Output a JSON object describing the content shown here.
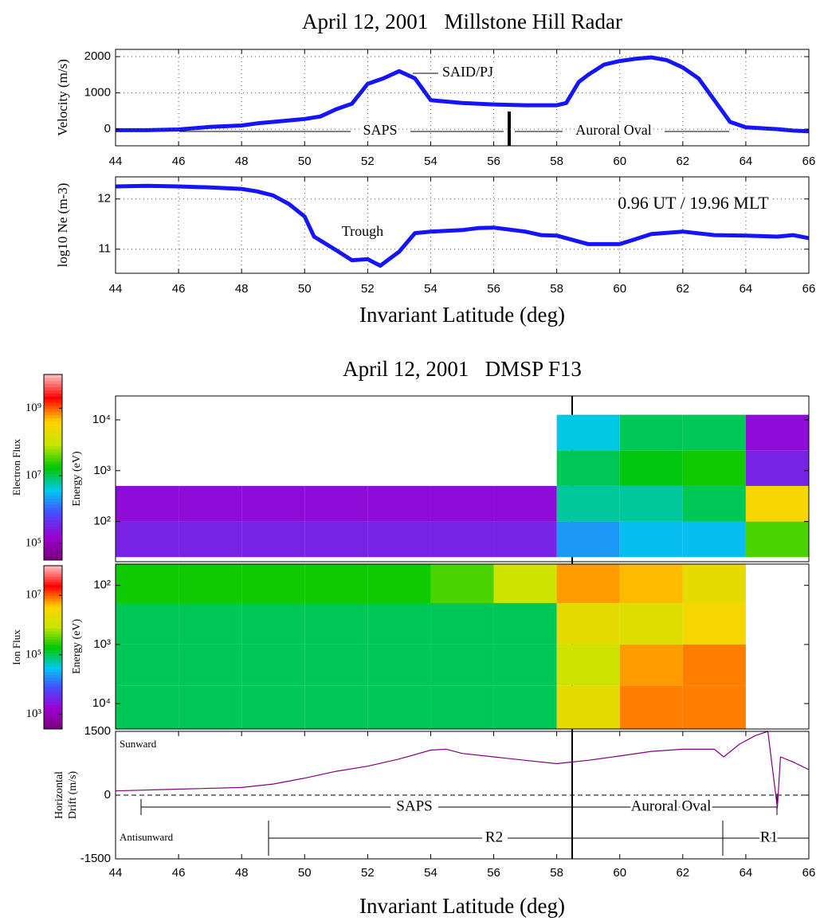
{
  "chart_data": [
    {
      "type": "line",
      "title": "April 12, 2001   Millstone Hill Radar",
      "y_label": "Velocity (m/s)",
      "x": [
        44,
        45,
        46,
        47,
        48,
        48.5,
        49,
        50,
        50.5,
        51,
        51.5,
        52,
        52.5,
        53,
        53.5,
        54,
        55,
        56,
        57,
        58,
        58.3,
        58.7,
        59,
        59.5,
        60,
        60.5,
        61,
        61.5,
        62,
        62.5,
        63,
        63.5,
        64,
        65,
        65.5,
        66
      ],
      "values": [
        -30,
        -30,
        -10,
        60,
        100,
        160,
        200,
        280,
        350,
        550,
        700,
        1250,
        1400,
        1600,
        1400,
        800,
        720,
        680,
        660,
        660,
        720,
        1300,
        1500,
        1780,
        1880,
        1940,
        1980,
        1900,
        1700,
        1400,
        800,
        200,
        50,
        0,
        -40,
        -60
      ],
      "color": "#1414ff",
      "xlim": [
        44,
        66
      ],
      "ylim": [
        -460,
        2200
      ],
      "xticks": [
        44,
        46,
        48,
        50,
        52,
        54,
        56,
        58,
        60,
        62,
        64,
        66
      ],
      "yticks": [
        0,
        1000,
        2000
      ],
      "grid": true,
      "annotations": [
        "SAID/PJ",
        "SAPS",
        "Auroral Oval"
      ]
    },
    {
      "type": "line",
      "y_label": "log10 Ne (m-3)",
      "x_label": "Invariant Latitude (deg)",
      "x": [
        44,
        45,
        46,
        47,
        48,
        48.5,
        49,
        49.5,
        50,
        50.3,
        51,
        51.5,
        52,
        52.4,
        53,
        53.5,
        54,
        55,
        55.5,
        56,
        57,
        57.5,
        58,
        59,
        60,
        60.5,
        61,
        62,
        63,
        64,
        65,
        65.5,
        66
      ],
      "values": [
        12.25,
        12.26,
        12.25,
        12.23,
        12.2,
        12.15,
        12.07,
        11.9,
        11.65,
        11.25,
        10.98,
        10.78,
        10.8,
        10.67,
        10.95,
        11.32,
        11.35,
        11.38,
        11.42,
        11.43,
        11.35,
        11.28,
        11.27,
        11.1,
        11.1,
        11.2,
        11.3,
        11.35,
        11.28,
        11.27,
        11.25,
        11.28,
        11.22
      ],
      "color": "#1414ff",
      "xlim": [
        44,
        66
      ],
      "ylim": [
        10.52,
        12.44
      ],
      "xticks": [
        44,
        46,
        48,
        50,
        52,
        54,
        56,
        58,
        60,
        62,
        64,
        66
      ],
      "yticks": [
        11,
        12
      ],
      "grid": true,
      "annotations": [
        "Trough",
        "0.96 UT / 19.96 MLT"
      ]
    },
    {
      "type": "heatmap",
      "title": "April 12, 2001   DMSP F13",
      "y_label": "Energy (eV)",
      "colorbar_label": "Electron Flux",
      "x_bins": [
        44,
        46,
        48,
        50,
        52,
        54,
        56,
        58,
        60,
        62,
        64,
        66
      ],
      "y_bins": [
        1.3,
        2.0,
        2.7,
        3.4,
        4.1
      ],
      "values": [
        [
          5.5,
          5.5,
          5.5,
          5.5,
          5.5,
          5.5,
          5.5,
          6.3,
          6.5,
          6.5,
          7.5
        ],
        [
          5.3,
          5.3,
          5.3,
          5.3,
          5.3,
          5.3,
          5.3,
          6.8,
          6.8,
          7.0,
          8.5
        ],
        [
          null,
          null,
          null,
          null,
          null,
          null,
          null,
          7.0,
          7.2,
          7.3,
          5.5
        ],
        [
          null,
          null,
          null,
          null,
          null,
          null,
          null,
          6.6,
          7.0,
          7.0,
          5.3
        ]
      ],
      "xlim": [
        44,
        66
      ],
      "ylim": [
        1.21,
        4.47
      ],
      "yticks": [
        {
          "value": 2,
          "label": "10²"
        },
        {
          "value": 3,
          "label": "10³"
        },
        {
          "value": 4,
          "label": "10⁴"
        }
      ],
      "clim": [
        4.5,
        10
      ],
      "cticks": [
        {
          "value": 5,
          "label": "10⁵"
        },
        {
          "value": 7,
          "label": "10⁷"
        },
        {
          "value": 9,
          "label": "10⁹"
        }
      ],
      "colormap": [
        "#78007a",
        "#9c00d0",
        "#4a4aff",
        "#00c8f0",
        "#00c800",
        "#c8e600",
        "#ffd200",
        "#ff0000",
        "#ffc0c0"
      ]
    },
    {
      "type": "heatmap",
      "y_label": "Energy (eV)",
      "colorbar_label": "Ion Flux",
      "x_bins": [
        44,
        46,
        48,
        50,
        52,
        54,
        56,
        58,
        60,
        62,
        64,
        66
      ],
      "y_bins": [
        1.64,
        2.3,
        3.0,
        3.7,
        4.43
      ],
      "values": [
        [
          5.3,
          5.3,
          5.3,
          5.3,
          5.3,
          5.5,
          6.0,
          6.8,
          6.7,
          6.3,
          null
        ],
        [
          5.0,
          5.0,
          5.0,
          5.0,
          5.0,
          5.0,
          5.0,
          6.3,
          6.2,
          6.5,
          null
        ],
        [
          5.0,
          5.0,
          5.0,
          5.0,
          5.0,
          5.0,
          5.0,
          6.0,
          6.8,
          6.9,
          null
        ],
        [
          5.0,
          5.0,
          5.0,
          5.0,
          5.0,
          5.0,
          5.0,
          6.3,
          6.9,
          6.9,
          null
        ]
      ],
      "xlim": [
        44,
        66
      ],
      "ylim": [
        4.43,
        1.64
      ],
      "yticks": [
        {
          "value": 2,
          "label": "10²"
        },
        {
          "value": 3,
          "label": "10³"
        },
        {
          "value": 4,
          "label": "10⁴"
        }
      ],
      "clim": [
        2.5,
        8
      ],
      "cticks": [
        {
          "value": 3,
          "label": "10³"
        },
        {
          "value": 5,
          "label": "10⁵"
        },
        {
          "value": 7,
          "label": "10⁷"
        }
      ],
      "colormap": [
        "#78007a",
        "#9c00d0",
        "#4a4aff",
        "#00c8f0",
        "#00c800",
        "#c8e600",
        "#ffd200",
        "#ff0000",
        "#ffc0c0"
      ]
    },
    {
      "type": "line",
      "y_label": [
        "Horizontal",
        "Drift (m/s)"
      ],
      "x_label": "Invariant Latitude (deg)",
      "x": [
        44,
        46,
        48,
        49,
        50,
        51,
        52,
        53,
        54,
        54.5,
        55,
        56,
        57,
        58,
        58.5,
        59,
        60,
        61,
        62,
        63,
        63.3,
        63.8,
        64.3,
        64.7,
        65,
        65.1,
        65.5,
        66
      ],
      "values": [
        100,
        140,
        180,
        260,
        400,
        560,
        680,
        850,
        1060,
        1080,
        980,
        900,
        820,
        740,
        780,
        820,
        920,
        1030,
        1080,
        1080,
        900,
        1200,
        1400,
        1500,
        -300,
        900,
        780,
        600
      ],
      "color": "#800080",
      "xlim": [
        44,
        66
      ],
      "ylim": [
        -1500,
        1500
      ],
      "xticks": [
        44,
        46,
        48,
        50,
        52,
        54,
        56,
        58,
        60,
        62,
        64,
        66
      ],
      "yticks": [
        -1500,
        0,
        1500
      ],
      "grid": false,
      "annotations": [
        "Sunward",
        "Antisunward",
        "SAPS",
        "Auroral Oval",
        "R2",
        "R1"
      ]
    }
  ]
}
